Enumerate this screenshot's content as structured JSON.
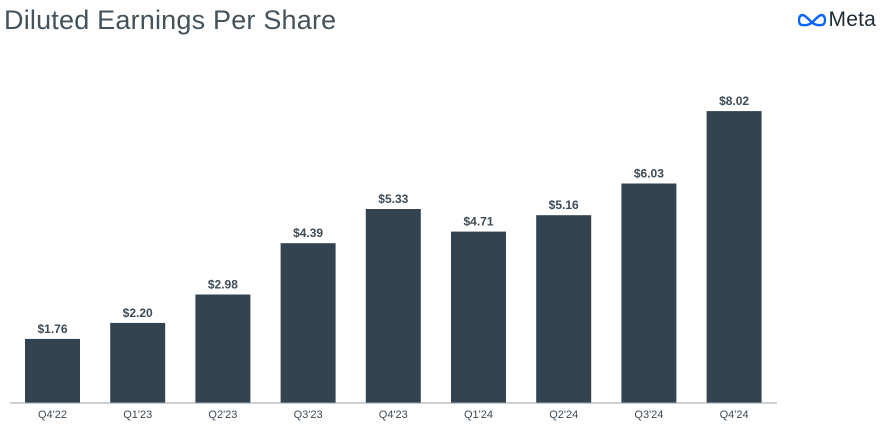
{
  "header": {
    "title": "Diluted Earnings Per Share",
    "brand_name": "Meta",
    "brand_logo": "meta-infinity-logo"
  },
  "colors": {
    "bar": "#33434f",
    "title": "#44525c",
    "brand_blue": "#0866ff"
  },
  "chart_data": {
    "type": "bar",
    "title": "Diluted Earnings Per Share",
    "xlabel": "",
    "ylabel": "",
    "grid": false,
    "legend": "none",
    "ylim": [
      0,
      8.5
    ],
    "categories": [
      "Q4'22",
      "Q1'23",
      "Q2'23",
      "Q3'23",
      "Q4'23",
      "Q1'24",
      "Q2'24",
      "Q3'24",
      "Q4'24"
    ],
    "values": [
      1.76,
      2.2,
      2.98,
      4.39,
      5.33,
      4.71,
      5.16,
      6.03,
      8.02
    ],
    "value_labels": [
      "$1.76",
      "$2.20",
      "$2.98",
      "$4.39",
      "$5.33",
      "$4.71",
      "$5.16",
      "$6.03",
      "$8.02"
    ]
  }
}
